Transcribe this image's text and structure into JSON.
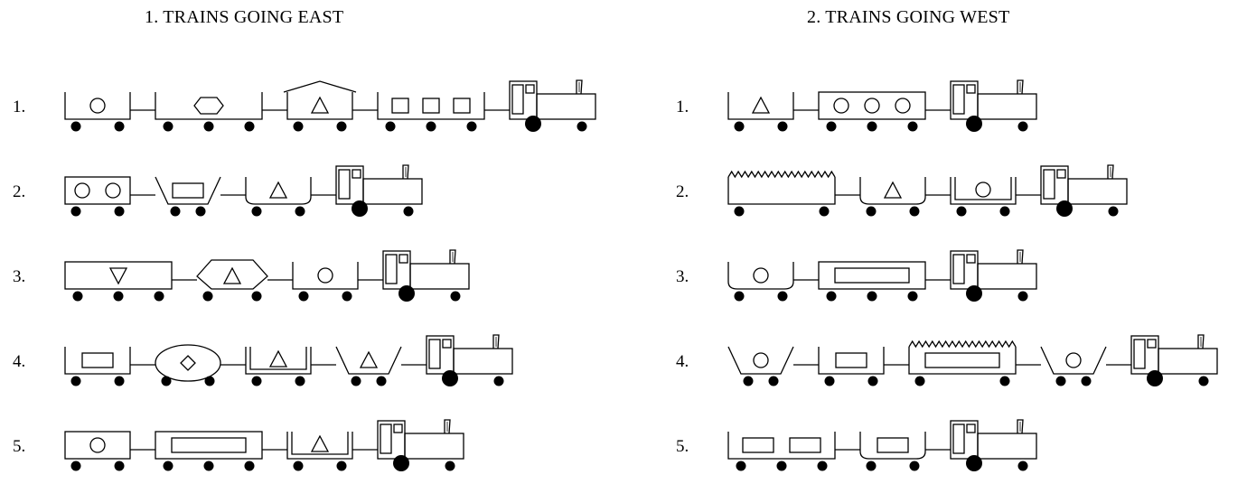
{
  "titles": {
    "east": "1. TRAINS GOING EAST",
    "west": "2. TRAINS GOING WEST"
  },
  "sections": [
    {
      "direction": "east",
      "trains": [
        {
          "label": "1.",
          "cars": [
            {
              "type": "open",
              "loads": [
                "circle"
              ]
            },
            {
              "type": "open-long",
              "loads": [
                "hexagon"
              ]
            },
            {
              "type": "open-roof",
              "loads": [
                "triangle"
              ]
            },
            {
              "type": "open-long",
              "loads": [
                "square",
                "square",
                "square"
              ]
            }
          ]
        },
        {
          "label": "2.",
          "cars": [
            {
              "type": "closed",
              "loads": [
                "circle",
                "circle"
              ]
            },
            {
              "type": "hopper",
              "loads": [
                "rectangle"
              ]
            },
            {
              "type": "bowl",
              "loads": [
                "triangle"
              ]
            }
          ]
        },
        {
          "label": "3.",
          "cars": [
            {
              "type": "closed-long",
              "loads": [
                "inverted-triangle"
              ]
            },
            {
              "type": "hexagon",
              "loads": [
                "triangle"
              ]
            },
            {
              "type": "open",
              "loads": [
                "circle"
              ]
            }
          ]
        },
        {
          "label": "4.",
          "cars": [
            {
              "type": "open",
              "loads": [
                "rectangle"
              ]
            },
            {
              "type": "ellipse",
              "loads": [
                "diamond"
              ]
            },
            {
              "type": "double",
              "loads": [
                "triangle"
              ]
            },
            {
              "type": "hopper",
              "loads": [
                "triangle"
              ]
            }
          ]
        },
        {
          "label": "5.",
          "cars": [
            {
              "type": "closed",
              "loads": [
                "circle"
              ]
            },
            {
              "type": "closed-long-box",
              "loads": [
                "long-rectangle"
              ]
            },
            {
              "type": "double",
              "loads": [
                "triangle"
              ]
            }
          ]
        }
      ]
    },
    {
      "direction": "west",
      "trains": [
        {
          "label": "1.",
          "cars": [
            {
              "type": "open",
              "loads": [
                "triangle"
              ]
            },
            {
              "type": "closed-long",
              "loads": [
                "circle",
                "circle",
                "circle"
              ]
            }
          ]
        },
        {
          "label": "2.",
          "cars": [
            {
              "type": "jagged",
              "loads": []
            },
            {
              "type": "bowl",
              "loads": [
                "triangle"
              ]
            },
            {
              "type": "double",
              "loads": [
                "circle"
              ]
            }
          ]
        },
        {
          "label": "3.",
          "cars": [
            {
              "type": "bowl",
              "loads": [
                "circle"
              ]
            },
            {
              "type": "closed-long-box",
              "loads": [
                "long-rectangle"
              ]
            }
          ]
        },
        {
          "label": "4.",
          "cars": [
            {
              "type": "hopper",
              "loads": [
                "circle"
              ]
            },
            {
              "type": "open",
              "loads": [
                "rectangle"
              ]
            },
            {
              "type": "jagged-box",
              "loads": [
                "long-rectangle"
              ]
            },
            {
              "type": "hopper",
              "loads": [
                "circle"
              ]
            }
          ]
        },
        {
          "label": "5.",
          "cars": [
            {
              "type": "open-long",
              "loads": [
                "rectangle",
                "rectangle"
              ]
            },
            {
              "type": "bowl",
              "loads": [
                "rectangle"
              ]
            }
          ]
        }
      ]
    }
  ]
}
